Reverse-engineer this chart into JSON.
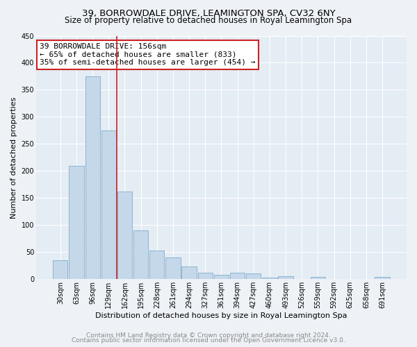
{
  "title": "39, BORROWDALE DRIVE, LEAMINGTON SPA, CV32 6NY",
  "subtitle": "Size of property relative to detached houses in Royal Leamington Spa",
  "xlabel": "Distribution of detached houses by size in Royal Leamington Spa",
  "ylabel": "Number of detached properties",
  "categories": [
    "30sqm",
    "63sqm",
    "96sqm",
    "129sqm",
    "162sqm",
    "195sqm",
    "228sqm",
    "261sqm",
    "294sqm",
    "327sqm",
    "361sqm",
    "394sqm",
    "427sqm",
    "460sqm",
    "493sqm",
    "526sqm",
    "559sqm",
    "592sqm",
    "625sqm",
    "658sqm",
    "691sqm"
  ],
  "values": [
    35,
    210,
    375,
    275,
    162,
    90,
    53,
    40,
    23,
    12,
    8,
    12,
    10,
    3,
    5,
    0,
    4,
    0,
    0,
    0,
    4
  ],
  "bar_color": "#c5d8ea",
  "bar_edge_color": "#8ab4d0",
  "vline_x": 4.0,
  "vline_color": "#cc2222",
  "annotation_text": "39 BORROWDALE DRIVE: 156sqm\n← 65% of detached houses are smaller (833)\n35% of semi-detached houses are larger (454) →",
  "annotation_box_color": "white",
  "annotation_box_edge_color": "#cc2222",
  "ylim": [
    0,
    450
  ],
  "yticks": [
    0,
    50,
    100,
    150,
    200,
    250,
    300,
    350,
    400,
    450
  ],
  "background_color": "#eef2f7",
  "plot_bg_color": "#e4ecf4",
  "footer1": "Contains HM Land Registry data © Crown copyright and database right 2024.",
  "footer2": "Contains public sector information licensed under the Open Government Licence v3.0.",
  "title_fontsize": 9.5,
  "subtitle_fontsize": 8.5,
  "xlabel_fontsize": 8,
  "ylabel_fontsize": 8,
  "tick_fontsize": 7,
  "footer_fontsize": 6.5,
  "annotation_fontsize": 8
}
